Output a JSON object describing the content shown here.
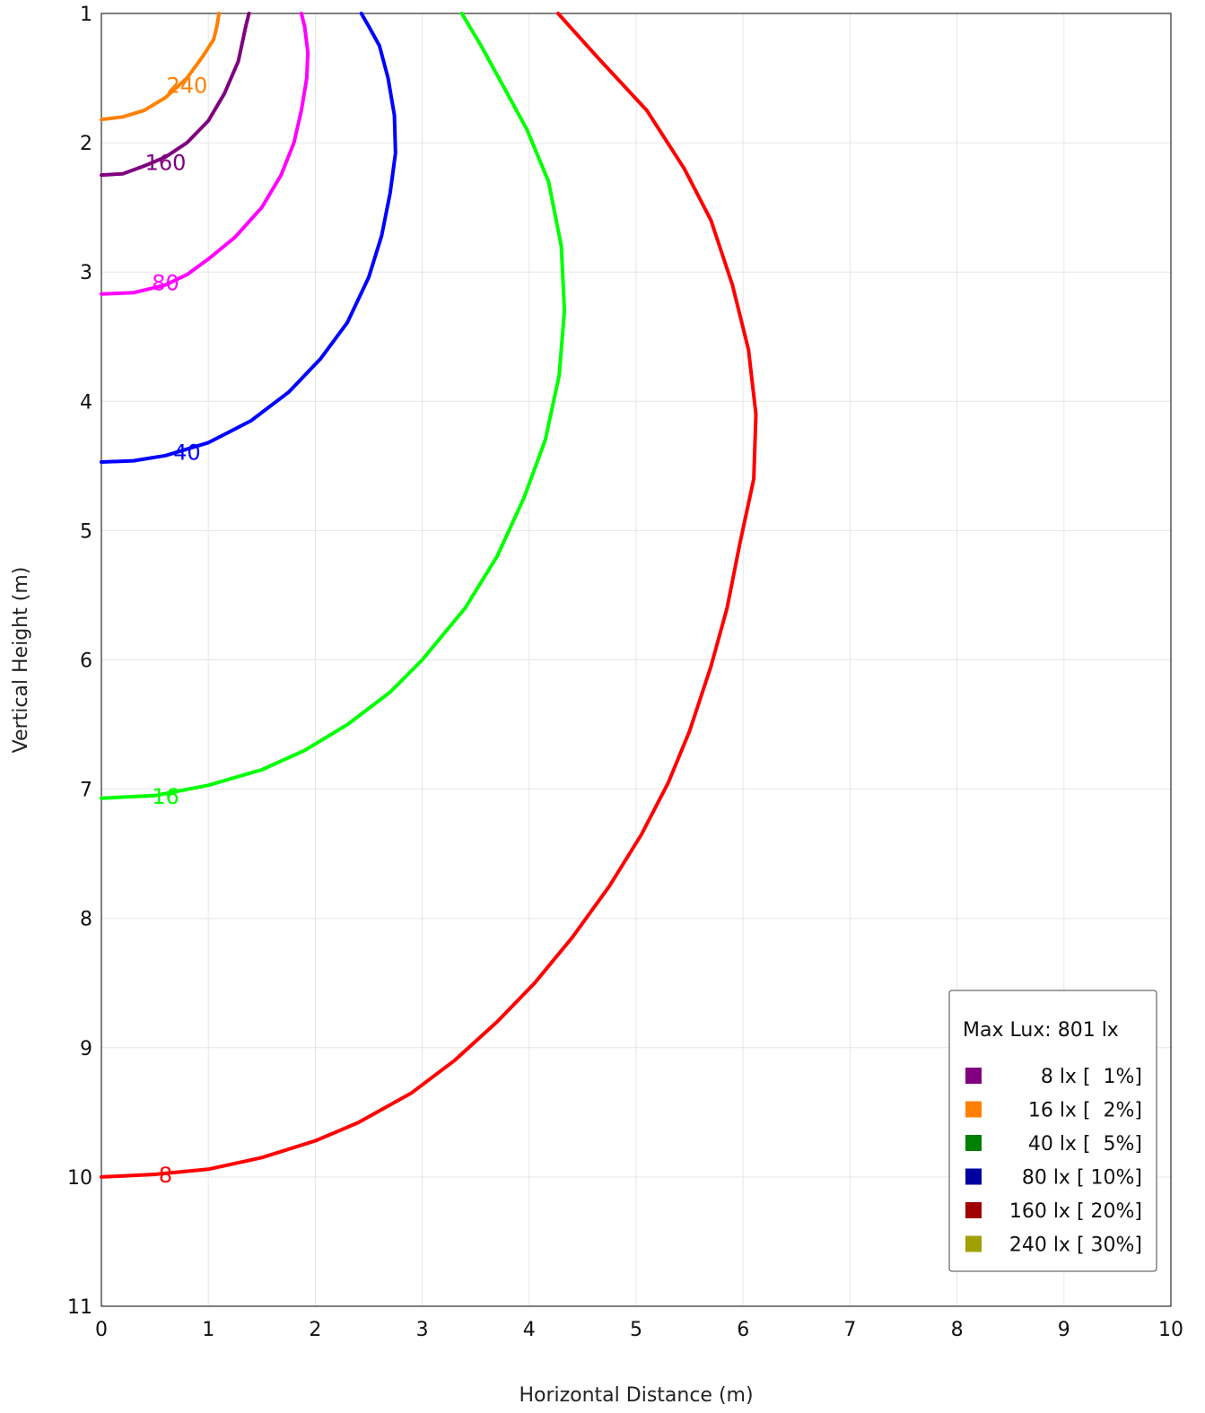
{
  "chart_data": {
    "type": "line",
    "title": "",
    "xlabel": "Horizontal Distance (m)",
    "ylabel": "Vertical Height (m)",
    "xlim": [
      0,
      10
    ],
    "ylim": [
      1,
      11
    ],
    "y_inverted": true,
    "grid": true,
    "x_ticks": [
      "0",
      "1",
      "2",
      "3",
      "4",
      "5",
      "6",
      "7",
      "8",
      "9",
      "10"
    ],
    "y_ticks": [
      "1",
      "2",
      "3",
      "4",
      "5",
      "6",
      "7",
      "8",
      "9",
      "10",
      "11"
    ],
    "series": [
      {
        "name": "240",
        "label": "240",
        "color": "#ff8000",
        "label_at": [
          0.8,
          1.55
        ],
        "points": [
          [
            0,
            1.82
          ],
          [
            0.2,
            1.8
          ],
          [
            0.4,
            1.75
          ],
          [
            0.6,
            1.65
          ],
          [
            0.8,
            1.5
          ],
          [
            0.95,
            1.33
          ],
          [
            1.05,
            1.2
          ],
          [
            1.08,
            1.1
          ],
          [
            1.1,
            1.0
          ]
        ]
      },
      {
        "name": "160",
        "label": "160",
        "color": "#800080",
        "label_at": [
          0.6,
          2.15
        ],
        "points": [
          [
            0,
            2.25
          ],
          [
            0.2,
            2.24
          ],
          [
            0.4,
            2.18
          ],
          [
            0.6,
            2.11
          ],
          [
            0.8,
            2.0
          ],
          [
            1.0,
            1.83
          ],
          [
            1.15,
            1.62
          ],
          [
            1.28,
            1.37
          ],
          [
            1.35,
            1.1
          ],
          [
            1.38,
            1.0
          ]
        ]
      },
      {
        "name": "80",
        "label": "80",
        "color": "#ff00ff",
        "label_at": [
          0.6,
          3.08
        ],
        "points": [
          [
            0,
            3.17
          ],
          [
            0.3,
            3.16
          ],
          [
            0.6,
            3.1
          ],
          [
            0.8,
            3.02
          ],
          [
            1.0,
            2.9
          ],
          [
            1.25,
            2.73
          ],
          [
            1.5,
            2.5
          ],
          [
            1.68,
            2.25
          ],
          [
            1.8,
            2.0
          ],
          [
            1.87,
            1.75
          ],
          [
            1.92,
            1.5
          ],
          [
            1.93,
            1.3
          ],
          [
            1.9,
            1.1
          ],
          [
            1.87,
            1.0
          ]
        ]
      },
      {
        "name": "40",
        "label": "40",
        "color": "#0000ff",
        "label_at": [
          0.8,
          4.39
        ],
        "points": [
          [
            0,
            4.47
          ],
          [
            0.3,
            4.46
          ],
          [
            0.6,
            4.42
          ],
          [
            1.0,
            4.32
          ],
          [
            1.4,
            4.15
          ],
          [
            1.75,
            3.93
          ],
          [
            2.05,
            3.67
          ],
          [
            2.3,
            3.39
          ],
          [
            2.5,
            3.04
          ],
          [
            2.62,
            2.72
          ],
          [
            2.7,
            2.39
          ],
          [
            2.75,
            2.08
          ],
          [
            2.74,
            1.79
          ],
          [
            2.68,
            1.5
          ],
          [
            2.6,
            1.25
          ],
          [
            2.5,
            1.1
          ],
          [
            2.43,
            1.0
          ]
        ]
      },
      {
        "name": "16",
        "label": "16",
        "color": "#00ff00",
        "label_at": [
          0.6,
          7.05
        ],
        "points": [
          [
            0,
            7.07
          ],
          [
            0.5,
            7.05
          ],
          [
            1.0,
            6.97
          ],
          [
            1.5,
            6.85
          ],
          [
            1.9,
            6.7
          ],
          [
            2.3,
            6.5
          ],
          [
            2.7,
            6.25
          ],
          [
            3.0,
            6.0
          ],
          [
            3.4,
            5.6
          ],
          [
            3.7,
            5.2
          ],
          [
            3.95,
            4.75
          ],
          [
            4.15,
            4.3
          ],
          [
            4.28,
            3.8
          ],
          [
            4.33,
            3.3
          ],
          [
            4.3,
            2.8
          ],
          [
            4.18,
            2.3
          ],
          [
            3.98,
            1.9
          ],
          [
            3.75,
            1.55
          ],
          [
            3.55,
            1.25
          ],
          [
            3.37,
            1.0
          ]
        ]
      },
      {
        "name": "8",
        "label": "8",
        "color": "#ff0000",
        "label_at": [
          0.6,
          9.98
        ],
        "points": [
          [
            0,
            10.0
          ],
          [
            0.5,
            9.98
          ],
          [
            1.0,
            9.94
          ],
          [
            1.5,
            9.85
          ],
          [
            2.0,
            9.72
          ],
          [
            2.4,
            9.58
          ],
          [
            2.9,
            9.35
          ],
          [
            3.3,
            9.1
          ],
          [
            3.7,
            8.8
          ],
          [
            4.05,
            8.5
          ],
          [
            4.4,
            8.15
          ],
          [
            4.75,
            7.75
          ],
          [
            5.05,
            7.35
          ],
          [
            5.3,
            6.95
          ],
          [
            5.5,
            6.55
          ],
          [
            5.7,
            6.05
          ],
          [
            5.85,
            5.6
          ],
          [
            5.97,
            5.1
          ],
          [
            6.1,
            4.6
          ],
          [
            6.12,
            4.1
          ],
          [
            6.05,
            3.6
          ],
          [
            5.9,
            3.1
          ],
          [
            5.7,
            2.6
          ],
          [
            5.45,
            2.2
          ],
          [
            5.1,
            1.75
          ],
          [
            4.65,
            1.35
          ],
          [
            4.27,
            1.0
          ]
        ]
      }
    ],
    "legend": {
      "placement": "bottom-right",
      "title": "Max Lux: 801 lx",
      "entries": [
        {
          "label": "8 lx [  1%]",
          "color": "#800080"
        },
        {
          "label": "16 lx [  2%]",
          "color": "#ff8000"
        },
        {
          "label": "40 lx [  5%]",
          "color": "#008000"
        },
        {
          "label": "80 lx [ 10%]",
          "color": "#0000a0"
        },
        {
          "label": "160 lx [ 20%]",
          "color": "#a00000"
        },
        {
          "label": "240 lx [ 30%]",
          "color": "#a0a000"
        }
      ]
    }
  }
}
